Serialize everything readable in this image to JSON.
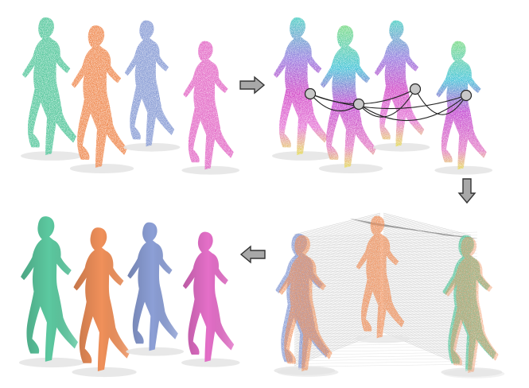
{
  "figure": {
    "panels": [
      {
        "id": "input-point-clouds",
        "figures": 4,
        "style": "colored-points"
      },
      {
        "id": "feature-embedding-graph",
        "figures": 4,
        "graph_nodes": 4,
        "style": "rainbow-points"
      },
      {
        "id": "dense-correspondences",
        "figures": 3,
        "style": "correspondence-lines"
      },
      {
        "id": "registered-meshes",
        "figures": 4,
        "style": "solid-mesh"
      }
    ],
    "arrows": [
      {
        "from": "input-point-clouds",
        "to": "feature-embedding-graph",
        "direction": "right"
      },
      {
        "from": "feature-embedding-graph",
        "to": "dense-correspondences",
        "direction": "down"
      },
      {
        "from": "dense-correspondences",
        "to": "registered-meshes",
        "direction": "left"
      }
    ],
    "colors": {
      "green": "#5cc9a0",
      "orange": "#f0905a",
      "blue": "#8c9fd6",
      "pink": "#e46fc8",
      "arrow_fill": "#a8a8a8",
      "arrow_stroke": "#333333",
      "graph_node": "#c8c8c8",
      "line_gray": "#9a9a9a",
      "shadow": "#e6e6e6"
    }
  }
}
